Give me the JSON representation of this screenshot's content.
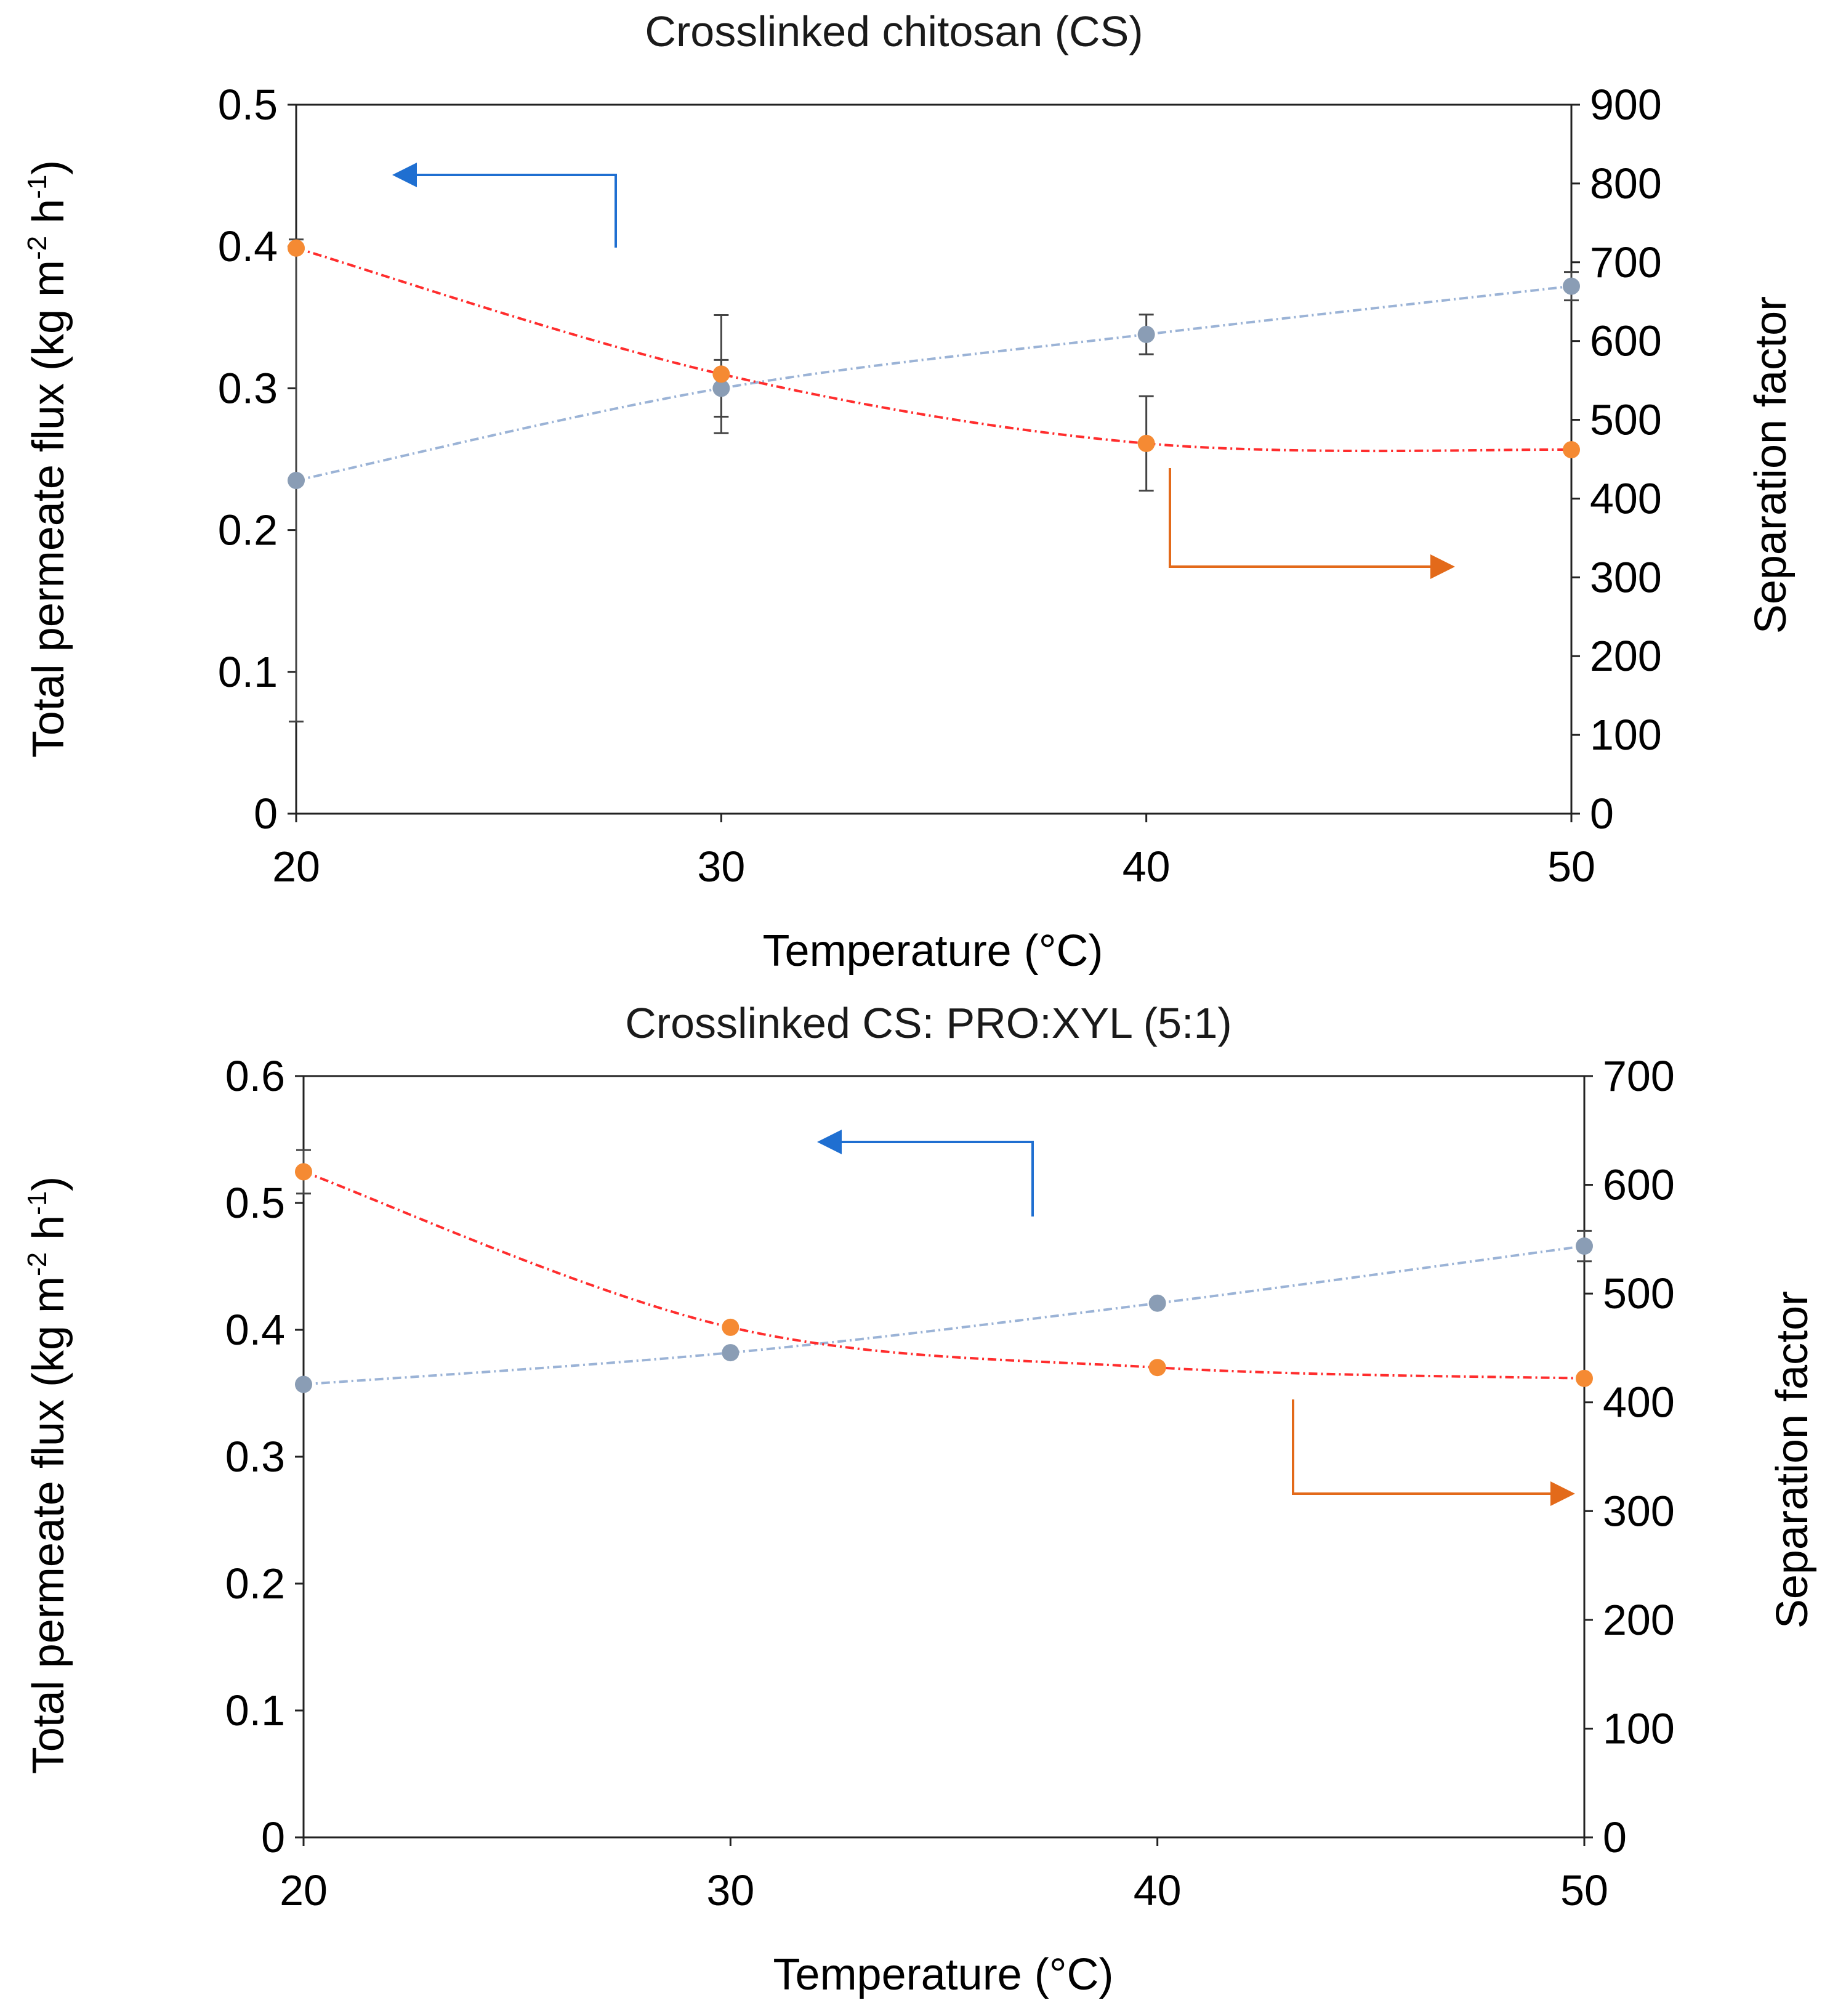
{
  "chart_data": [
    {
      "type": "line",
      "title": "Crosslinked chitosan (CS)",
      "xlabel": "Temperature (°C)",
      "ylabel": {
        "main": "Total permeate flux (kg m",
        "sup1": "-2",
        "mid": " h",
        "sup2": "-1",
        "end": ")"
      },
      "y2label": "Separation factor",
      "x": [
        20,
        30,
        40,
        50
      ],
      "xlim": [
        20,
        50
      ],
      "xticks": [
        "20",
        "30",
        "40",
        "50"
      ],
      "ylim": [
        0,
        0.5
      ],
      "yticks": [
        "0",
        "0.1",
        "0.2",
        "0.3",
        "0.4",
        "0.5"
      ],
      "y2lim": [
        0,
        900
      ],
      "y2ticks": [
        "0",
        "100",
        "200",
        "300",
        "400",
        "500",
        "600",
        "700",
        "800",
        "900"
      ],
      "series": [
        {
          "name": "Total permeate flux",
          "axis": "left",
          "color": "#8a9db5",
          "line_color": "#9bb3d6",
          "values": [
            0.235,
            0.3,
            0.338,
            0.372
          ],
          "errors": [
            0.17,
            0.02,
            0.014,
            0.01
          ]
        },
        {
          "name": "Separation factor",
          "axis": "right",
          "color": "#f58a33",
          "line_color": "#ff2d2d",
          "values": [
            718,
            558,
            470,
            462
          ],
          "errors": [
            0,
            75,
            60,
            0
          ]
        }
      ],
      "annotations": [
        {
          "text": "arrow pointing to left axis",
          "color": "#1f6fd1",
          "direction": "left"
        },
        {
          "text": "arrow pointing to right axis",
          "color": "#e36a1a",
          "direction": "right"
        }
      ]
    },
    {
      "type": "line",
      "title": "Crosslinked CS: PRO:XYL (5:1)",
      "xlabel": "Temperature (°C)",
      "ylabel": {
        "main": "Total permeate flux (kg m",
        "sup1": "-2",
        "mid": " h",
        "sup2": "-1",
        "end": ")"
      },
      "y2label": "Separation factor",
      "x": [
        20,
        30,
        40,
        50
      ],
      "xlim": [
        20,
        50
      ],
      "xticks": [
        "20",
        "30",
        "40",
        "50"
      ],
      "ylim": [
        0,
        0.6
      ],
      "yticks": [
        "0",
        "0.1",
        "0.2",
        "0.3",
        "0.4",
        "0.5",
        "0.6"
      ],
      "y2lim": [
        0,
        700
      ],
      "y2ticks": [
        "0",
        "100",
        "200",
        "300",
        "400",
        "500",
        "600",
        "700"
      ],
      "series": [
        {
          "name": "Total permeate flux",
          "axis": "left",
          "color": "#8a9db5",
          "line_color": "#9bb3d6",
          "values": [
            0.357,
            0.382,
            0.421,
            0.466
          ],
          "errors": [
            0,
            0,
            0,
            0.012
          ]
        },
        {
          "name": "Separation factor",
          "axis": "right",
          "color": "#f58a33",
          "line_color": "#ff2d2d",
          "values": [
            612,
            469,
            432,
            422
          ],
          "errors": [
            20,
            0,
            0,
            0
          ]
        }
      ],
      "annotations": [
        {
          "text": "arrow pointing to left axis",
          "color": "#1f6fd1",
          "direction": "left"
        },
        {
          "text": "arrow pointing to right axis",
          "color": "#e36a1a",
          "direction": "right"
        }
      ]
    }
  ]
}
